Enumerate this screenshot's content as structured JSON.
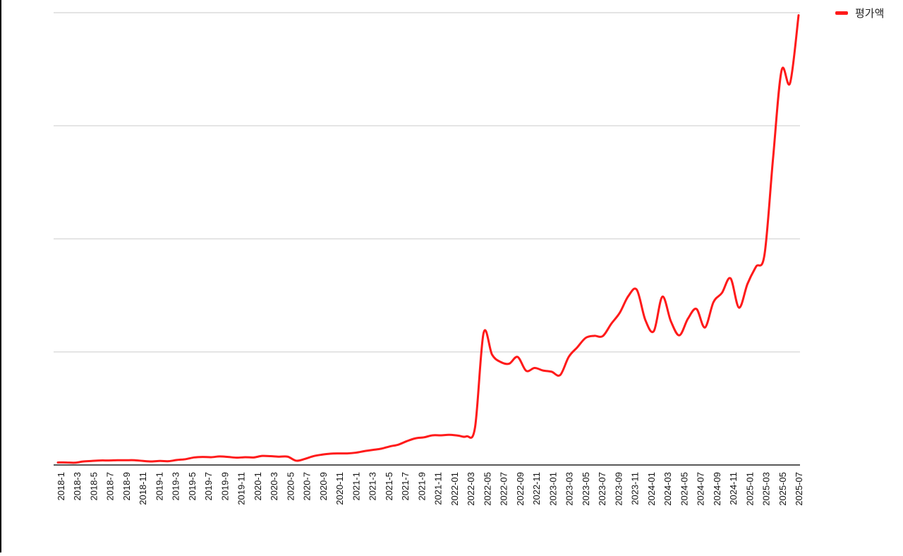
{
  "chart_data": {
    "type": "line",
    "title": "",
    "xlabel": "",
    "ylabel": "",
    "legend_position": "top-right",
    "grid": true,
    "y_tick_labels": "hidden",
    "series": [
      {
        "name": "평가액",
        "color": "#ff1a1a",
        "values": [
          1.0,
          1.0,
          0.9,
          1.4,
          1.6,
          1.8,
          1.8,
          1.9,
          1.9,
          1.9,
          1.6,
          1.4,
          1.6,
          1.5,
          2.0,
          2.3,
          3.0,
          3.2,
          3.1,
          3.4,
          3.2,
          2.9,
          3.1,
          3.0,
          3.6,
          3.5,
          3.3,
          3.3,
          1.7,
          2.4,
          3.5,
          4.1,
          4.5,
          4.6,
          4.6,
          4.9,
          5.5,
          6.0,
          6.5,
          7.4,
          8.1,
          9.5,
          10.6,
          11.0,
          11.8,
          11.8,
          12.0,
          11.7,
          11.4,
          15.0,
          52.5,
          43.9,
          41.0,
          40.3,
          43.0,
          37.5,
          38.6,
          37.6,
          37.1,
          35.8,
          43.0,
          46.8,
          50.6,
          51.4,
          51.3,
          56.2,
          60.6,
          67.2,
          69.7,
          57.7,
          53.3,
          67.0,
          57.2,
          51.6,
          58.2,
          62.1,
          54.7,
          64.8,
          68.5,
          74.3,
          62.6,
          72.1,
          78.9,
          83.8,
          122.0,
          157.0,
          152.0,
          179.0
        ]
      }
    ],
    "x_labels": [
      "2018-1",
      "2018-3",
      "2018-5",
      "2018-7",
      "2018-9",
      "2018-11",
      "2019-1",
      "2019-3",
      "2019-5",
      "2019-7",
      "2019-9",
      "2019-11",
      "2020-1",
      "2020-3",
      "2020-5",
      "2020-7",
      "2020-9",
      "2020-11",
      "2021-1",
      "2021-3",
      "2021-5",
      "2021-7",
      "2021-9",
      "2021-11",
      "2022-01",
      "2022-03",
      "2022-05",
      "2022-07",
      "2022-09",
      "2022-11",
      "2023-01",
      "2023-03",
      "2023-05",
      "2023-07",
      "2023-09",
      "2023-11",
      "2024-01",
      "2024-03",
      "2024-05",
      "2024-07",
      "2024-09",
      "2024-11",
      "2025-01",
      "2025-03",
      "2025-05",
      "2025-07"
    ],
    "ylim": [
      0,
      180
    ],
    "y_gridlines": [
      0,
      45,
      90,
      135,
      180
    ]
  }
}
